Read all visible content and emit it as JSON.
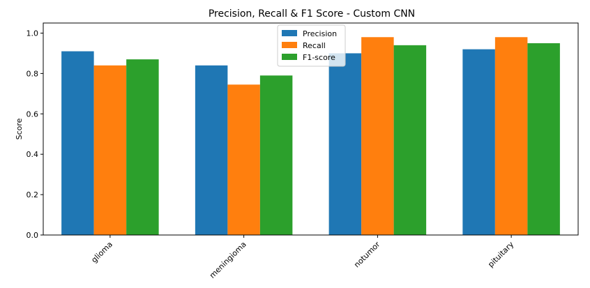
{
  "chart_data": {
    "type": "bar",
    "title": "Precision, Recall & F1 Score - Custom CNN",
    "xlabel": "",
    "ylabel": "Score",
    "categories": [
      "glioma",
      "meningioma",
      "notumor",
      "pituitary"
    ],
    "series": [
      {
        "name": "Precision",
        "color": "#1f77b4",
        "values": [
          0.91,
          0.84,
          0.9,
          0.92
        ]
      },
      {
        "name": "Recall",
        "color": "#ff7f0e",
        "values": [
          0.84,
          0.745,
          0.98,
          0.98
        ]
      },
      {
        "name": "F1-score",
        "color": "#2ca02c",
        "values": [
          0.87,
          0.79,
          0.94,
          0.95
        ]
      }
    ],
    "ylim": [
      0,
      1.05
    ],
    "yticks": [
      "0.0",
      "0.2",
      "0.4",
      "0.6",
      "0.8",
      "1.0"
    ],
    "grid": false,
    "legend_position": "top-center"
  }
}
